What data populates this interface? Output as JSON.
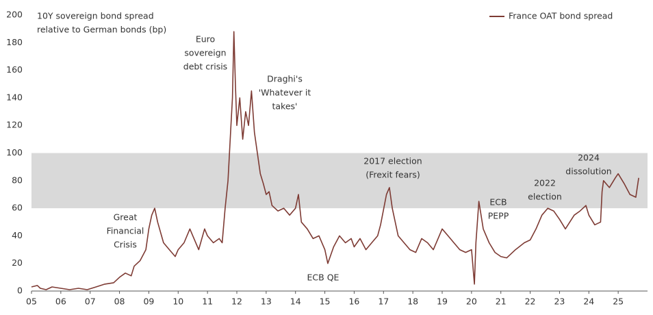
{
  "chart_data": {
    "type": "line",
    "title": [
      "10Y sovereign bond spread",
      "relative to German bonds (bp)"
    ],
    "xlim": [
      2005,
      2026
    ],
    "xticks": [
      {
        "value": 2005,
        "label": "05"
      },
      {
        "value": 2006,
        "label": "06"
      },
      {
        "value": 2007,
        "label": "07"
      },
      {
        "value": 2008,
        "label": "08"
      },
      {
        "value": 2009,
        "label": "09"
      },
      {
        "value": 2010,
        "label": "10"
      },
      {
        "value": 2011,
        "label": "11"
      },
      {
        "value": 2012,
        "label": "12"
      },
      {
        "value": 2013,
        "label": "13"
      },
      {
        "value": 2014,
        "label": "14"
      },
      {
        "value": 2015,
        "label": "15"
      },
      {
        "value": 2016,
        "label": "16"
      },
      {
        "value": 2017,
        "label": "17"
      },
      {
        "value": 2018,
        "label": "18"
      },
      {
        "value": 2019,
        "label": "19"
      },
      {
        "value": 2020,
        "label": "20"
      },
      {
        "value": 2021,
        "label": "21"
      },
      {
        "value": 2022,
        "label": "22"
      },
      {
        "value": 2023,
        "label": "23"
      },
      {
        "value": 2024,
        "label": "24"
      },
      {
        "value": 2025,
        "label": "25"
      }
    ],
    "ylim": [
      0,
      200
    ],
    "yticks": [
      0,
      20,
      40,
      60,
      80,
      100,
      120,
      140,
      160,
      180,
      200
    ],
    "band": {
      "range": [
        60,
        100
      ],
      "color": "#d9d9d9"
    },
    "legend": "top-right",
    "series": [
      {
        "name": "France OAT bond spread",
        "color": "#7d3a33",
        "x": [
          2005.0,
          2005.2,
          2005.3,
          2005.5,
          2005.7,
          2006.0,
          2006.3,
          2006.6,
          2006.9,
          2007.2,
          2007.5,
          2007.8,
          2008.0,
          2008.2,
          2008.4,
          2008.5,
          2008.7,
          2008.9,
          2009.0,
          2009.1,
          2009.2,
          2009.3,
          2009.5,
          2009.7,
          2009.9,
          2010.0,
          2010.2,
          2010.4,
          2010.5,
          2010.7,
          2010.9,
          2011.0,
          2011.2,
          2011.4,
          2011.5,
          2011.6,
          2011.7,
          2011.8,
          2011.85,
          2011.9,
          2011.95,
          2012.0,
          2012.1,
          2012.2,
          2012.3,
          2012.4,
          2012.5,
          2012.6,
          2012.7,
          2012.8,
          2012.9,
          2013.0,
          2013.1,
          2013.2,
          2013.4,
          2013.6,
          2013.8,
          2014.0,
          2014.1,
          2014.2,
          2014.4,
          2014.6,
          2014.8,
          2015.0,
          2015.1,
          2015.3,
          2015.5,
          2015.7,
          2015.9,
          2016.0,
          2016.2,
          2016.4,
          2016.6,
          2016.8,
          2016.9,
          2017.1,
          2017.2,
          2017.3,
          2017.5,
          2017.7,
          2017.9,
          2018.1,
          2018.3,
          2018.5,
          2018.7,
          2018.9,
          2019.0,
          2019.2,
          2019.4,
          2019.6,
          2019.8,
          2020.0,
          2020.1,
          2020.15,
          2020.25,
          2020.4,
          2020.6,
          2020.8,
          2021.0,
          2021.2,
          2021.5,
          2021.8,
          2022.0,
          2022.2,
          2022.4,
          2022.6,
          2022.8,
          2023.0,
          2023.2,
          2023.5,
          2023.7,
          2023.9,
          2024.0,
          2024.2,
          2024.4,
          2024.45,
          2024.5,
          2024.7,
          2024.9,
          2025.0,
          2025.2,
          2025.4,
          2025.6,
          2025.7
        ],
        "values": [
          3,
          4,
          2,
          1,
          3,
          2,
          1,
          2,
          1,
          3,
          5,
          6,
          10,
          13,
          11,
          18,
          22,
          30,
          45,
          55,
          60,
          50,
          35,
          30,
          25,
          30,
          35,
          45,
          40,
          30,
          45,
          40,
          35,
          38,
          35,
          60,
          80,
          120,
          140,
          188,
          150,
          120,
          140,
          110,
          130,
          120,
          145,
          115,
          100,
          85,
          78,
          70,
          72,
          62,
          58,
          60,
          55,
          60,
          70,
          50,
          45,
          38,
          40,
          30,
          20,
          32,
          40,
          35,
          38,
          32,
          38,
          30,
          35,
          40,
          48,
          70,
          75,
          60,
          40,
          35,
          30,
          28,
          38,
          35,
          30,
          40,
          45,
          40,
          35,
          30,
          28,
          30,
          5,
          35,
          65,
          45,
          35,
          28,
          25,
          24,
          30,
          35,
          37,
          45,
          55,
          60,
          58,
          52,
          45,
          55,
          58,
          62,
          55,
          48,
          50,
          72,
          80,
          75,
          82,
          85,
          78,
          70,
          68,
          82
        ]
      }
    ],
    "annotations": [
      [
        "Great",
        "Financial",
        "Crisis"
      ],
      [
        "Euro",
        "sovereign",
        "debt crisis"
      ],
      [
        "Draghi's",
        "'Whatever it",
        "takes'"
      ],
      [
        "ECB QE"
      ],
      [
        "2017 election",
        "(Frexit fears)"
      ],
      [
        "ECB",
        "PEPP"
      ],
      [
        "2022",
        "election"
      ],
      [
        "2024",
        "dissolution"
      ]
    ]
  }
}
